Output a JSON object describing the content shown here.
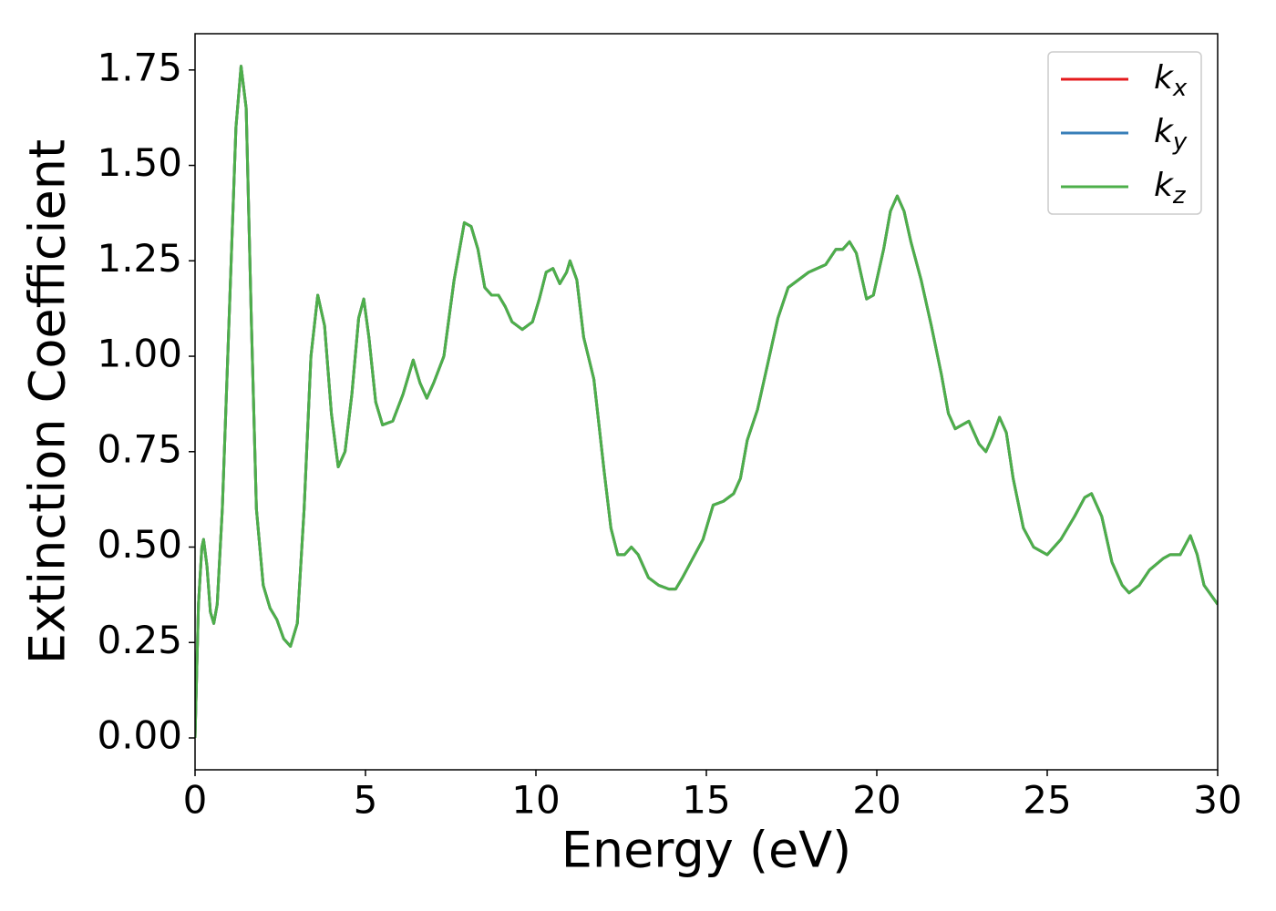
{
  "chart_data": {
    "type": "line",
    "xlabel": "Energy (eV)",
    "ylabel": "Extinction Coefficient",
    "x": [
      0,
      0.1,
      0.2,
      0.25,
      0.35,
      0.45,
      0.55,
      0.65,
      0.8,
      1.0,
      1.2,
      1.35,
      1.5,
      1.65,
      1.8,
      2.0,
      2.2,
      2.4,
      2.6,
      2.8,
      3.0,
      3.2,
      3.4,
      3.6,
      3.8,
      4.0,
      4.2,
      4.4,
      4.6,
      4.8,
      4.95,
      5.1,
      5.3,
      5.5,
      5.8,
      6.1,
      6.4,
      6.6,
      6.8,
      7.0,
      7.3,
      7.6,
      7.9,
      8.1,
      8.3,
      8.5,
      8.7,
      8.9,
      9.1,
      9.3,
      9.6,
      9.9,
      10.1,
      10.3,
      10.5,
      10.7,
      10.9,
      11.0,
      11.2,
      11.4,
      11.7,
      12.0,
      12.2,
      12.4,
      12.6,
      12.8,
      13.0,
      13.3,
      13.6,
      13.9,
      14.1,
      14.3,
      14.6,
      14.9,
      15.2,
      15.5,
      15.8,
      16.0,
      16.2,
      16.5,
      16.8,
      17.1,
      17.4,
      17.7,
      18.0,
      18.5,
      18.8,
      19.0,
      19.2,
      19.4,
      19.7,
      19.9,
      20.2,
      20.4,
      20.6,
      20.8,
      21.0,
      21.3,
      21.6,
      21.9,
      22.1,
      22.3,
      22.5,
      22.7,
      23.0,
      23.2,
      23.4,
      23.6,
      23.8,
      24.0,
      24.3,
      24.6,
      25.0,
      25.4,
      25.8,
      26.1,
      26.3,
      26.6,
      26.9,
      27.2,
      27.4,
      27.7,
      28.0,
      28.4,
      28.6,
      28.9,
      29.2,
      29.4,
      29.6,
      30.0
    ],
    "series": [
      {
        "name": "kx",
        "color": "#e41a1c",
        "values": [
          0,
          0.35,
          0.5,
          0.52,
          0.45,
          0.33,
          0.3,
          0.35,
          0.6,
          1.1,
          1.6,
          1.76,
          1.65,
          1.1,
          0.6,
          0.4,
          0.34,
          0.31,
          0.26,
          0.24,
          0.3,
          0.6,
          1.0,
          1.16,
          1.08,
          0.85,
          0.71,
          0.75,
          0.9,
          1.1,
          1.15,
          1.05,
          0.88,
          0.82,
          0.83,
          0.9,
          0.99,
          0.93,
          0.89,
          0.93,
          1.0,
          1.2,
          1.35,
          1.34,
          1.28,
          1.18,
          1.16,
          1.16,
          1.13,
          1.09,
          1.07,
          1.09,
          1.15,
          1.22,
          1.23,
          1.19,
          1.22,
          1.25,
          1.2,
          1.05,
          0.94,
          0.7,
          0.55,
          0.48,
          0.48,
          0.5,
          0.48,
          0.42,
          0.4,
          0.39,
          0.39,
          0.42,
          0.47,
          0.52,
          0.61,
          0.62,
          0.64,
          0.68,
          0.78,
          0.86,
          0.98,
          1.1,
          1.18,
          1.2,
          1.22,
          1.24,
          1.28,
          1.28,
          1.3,
          1.27,
          1.15,
          1.16,
          1.28,
          1.38,
          1.42,
          1.38,
          1.3,
          1.2,
          1.08,
          0.95,
          0.85,
          0.81,
          0.82,
          0.83,
          0.77,
          0.75,
          0.79,
          0.84,
          0.8,
          0.68,
          0.55,
          0.5,
          0.48,
          0.52,
          0.58,
          0.63,
          0.64,
          0.58,
          0.46,
          0.4,
          0.38,
          0.4,
          0.44,
          0.47,
          0.48,
          0.48,
          0.53,
          0.48,
          0.4,
          0.35
        ]
      },
      {
        "name": "ky",
        "color": "#377eb8",
        "values": [
          0,
          0.35,
          0.5,
          0.52,
          0.45,
          0.33,
          0.3,
          0.35,
          0.6,
          1.1,
          1.6,
          1.76,
          1.65,
          1.1,
          0.6,
          0.4,
          0.34,
          0.31,
          0.26,
          0.24,
          0.3,
          0.6,
          1.0,
          1.16,
          1.08,
          0.85,
          0.71,
          0.75,
          0.9,
          1.1,
          1.15,
          1.05,
          0.88,
          0.82,
          0.83,
          0.9,
          0.99,
          0.93,
          0.89,
          0.93,
          1.0,
          1.2,
          1.35,
          1.34,
          1.28,
          1.18,
          1.16,
          1.16,
          1.13,
          1.09,
          1.07,
          1.09,
          1.15,
          1.22,
          1.23,
          1.19,
          1.22,
          1.25,
          1.2,
          1.05,
          0.94,
          0.7,
          0.55,
          0.48,
          0.48,
          0.5,
          0.48,
          0.42,
          0.4,
          0.39,
          0.39,
          0.42,
          0.47,
          0.52,
          0.61,
          0.62,
          0.64,
          0.68,
          0.78,
          0.86,
          0.98,
          1.1,
          1.18,
          1.2,
          1.22,
          1.24,
          1.28,
          1.28,
          1.3,
          1.27,
          1.15,
          1.16,
          1.28,
          1.38,
          1.42,
          1.38,
          1.3,
          1.2,
          1.08,
          0.95,
          0.85,
          0.81,
          0.82,
          0.83,
          0.77,
          0.75,
          0.79,
          0.84,
          0.8,
          0.68,
          0.55,
          0.5,
          0.48,
          0.52,
          0.58,
          0.63,
          0.64,
          0.58,
          0.46,
          0.4,
          0.38,
          0.4,
          0.44,
          0.47,
          0.48,
          0.48,
          0.53,
          0.48,
          0.4,
          0.35
        ]
      },
      {
        "name": "kz",
        "color": "#4daf4a",
        "values": [
          0,
          0.35,
          0.5,
          0.52,
          0.45,
          0.33,
          0.3,
          0.35,
          0.6,
          1.1,
          1.6,
          1.76,
          1.65,
          1.1,
          0.6,
          0.4,
          0.34,
          0.31,
          0.26,
          0.24,
          0.3,
          0.6,
          1.0,
          1.16,
          1.08,
          0.85,
          0.71,
          0.75,
          0.9,
          1.1,
          1.15,
          1.05,
          0.88,
          0.82,
          0.83,
          0.9,
          0.99,
          0.93,
          0.89,
          0.93,
          1.0,
          1.2,
          1.35,
          1.34,
          1.28,
          1.18,
          1.16,
          1.16,
          1.13,
          1.09,
          1.07,
          1.09,
          1.15,
          1.22,
          1.23,
          1.19,
          1.22,
          1.25,
          1.2,
          1.05,
          0.94,
          0.7,
          0.55,
          0.48,
          0.48,
          0.5,
          0.48,
          0.42,
          0.4,
          0.39,
          0.39,
          0.42,
          0.47,
          0.52,
          0.61,
          0.62,
          0.64,
          0.68,
          0.78,
          0.86,
          0.98,
          1.1,
          1.18,
          1.2,
          1.22,
          1.24,
          1.28,
          1.28,
          1.3,
          1.27,
          1.15,
          1.16,
          1.28,
          1.38,
          1.42,
          1.38,
          1.3,
          1.2,
          1.08,
          0.95,
          0.85,
          0.81,
          0.82,
          0.83,
          0.77,
          0.75,
          0.79,
          0.84,
          0.8,
          0.68,
          0.55,
          0.5,
          0.48,
          0.52,
          0.58,
          0.63,
          0.64,
          0.58,
          0.46,
          0.4,
          0.38,
          0.4,
          0.44,
          0.47,
          0.48,
          0.48,
          0.53,
          0.48,
          0.4,
          0.35
        ]
      }
    ],
    "xlim": [
      0,
      30
    ],
    "xticks": [
      0,
      5,
      10,
      15,
      20,
      25,
      30
    ],
    "ylim": [
      -0.0835,
      1.845
    ],
    "yticks": [
      {
        "value": 0,
        "label": "0.00"
      },
      {
        "value": 0.25,
        "label": "0.25"
      },
      {
        "value": 0.5,
        "label": "0.50"
      },
      {
        "value": 0.75,
        "label": "0.75"
      },
      {
        "value": 1,
        "label": "1.00"
      },
      {
        "value": 1.25,
        "label": "1.25"
      },
      {
        "value": 1.5,
        "label": "1.50"
      },
      {
        "value": 1.75,
        "label": "1.75"
      }
    ],
    "grid": false,
    "legend": "upper right"
  }
}
